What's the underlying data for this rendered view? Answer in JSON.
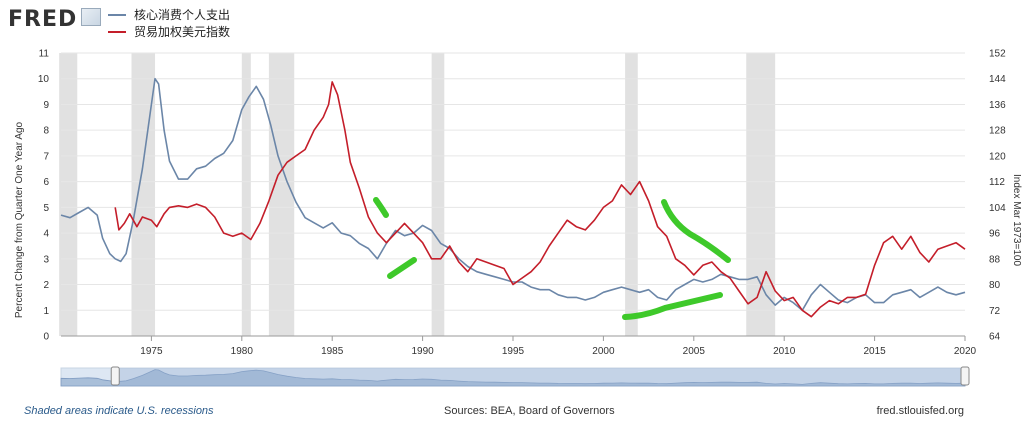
{
  "brand": {
    "name": "FRED"
  },
  "legend": [
    {
      "label": "核心消费个人支出",
      "color": "#6b86a8"
    },
    {
      "label": "贸易加权美元指数",
      "color": "#c41e2a"
    }
  ],
  "chart_data": {
    "type": "line",
    "ylabel_left": "Percent Change from Quarter One Year Ago",
    "ylabel_right": "Index Mar 1973=100",
    "x_range": [
      1970,
      2020
    ],
    "y_left_range": [
      0,
      11
    ],
    "y_right_range": [
      64,
      152
    ],
    "x_ticks": [
      1975,
      1980,
      1985,
      1990,
      1995,
      2000,
      2005,
      2010,
      2015,
      2020
    ],
    "y_left_ticks": [
      0,
      1,
      2,
      3,
      4,
      5,
      6,
      7,
      8,
      9,
      10,
      11
    ],
    "y_right_ticks": [
      64,
      72,
      80,
      88,
      96,
      104,
      112,
      120,
      128,
      136,
      144,
      152
    ],
    "recessions": [
      [
        1969.9,
        1970.9
      ],
      [
        1973.9,
        1975.2
      ],
      [
        1980.0,
        1980.5
      ],
      [
        1981.5,
        1982.9
      ],
      [
        1990.5,
        1991.2
      ],
      [
        2001.2,
        2001.9
      ],
      [
        2007.9,
        2009.5
      ]
    ],
    "series": [
      {
        "name": "核心消费个人支出",
        "axis": "left",
        "color": "#6b86a8",
        "points": [
          [
            1970.0,
            4.7
          ],
          [
            1970.5,
            4.6
          ],
          [
            1971.0,
            4.8
          ],
          [
            1971.5,
            5.0
          ],
          [
            1972.0,
            4.7
          ],
          [
            1972.3,
            3.8
          ],
          [
            1972.7,
            3.2
          ],
          [
            1973.0,
            3.0
          ],
          [
            1973.3,
            2.9
          ],
          [
            1973.6,
            3.2
          ],
          [
            1974.0,
            4.5
          ],
          [
            1974.5,
            6.5
          ],
          [
            1974.9,
            8.5
          ],
          [
            1975.2,
            10.0
          ],
          [
            1975.4,
            9.8
          ],
          [
            1975.7,
            8.0
          ],
          [
            1976.0,
            6.8
          ],
          [
            1976.5,
            6.1
          ],
          [
            1977.0,
            6.1
          ],
          [
            1977.5,
            6.5
          ],
          [
            1978.0,
            6.6
          ],
          [
            1978.5,
            6.9
          ],
          [
            1979.0,
            7.1
          ],
          [
            1979.5,
            7.6
          ],
          [
            1980.0,
            8.8
          ],
          [
            1980.4,
            9.3
          ],
          [
            1980.8,
            9.7
          ],
          [
            1981.2,
            9.2
          ],
          [
            1981.6,
            8.2
          ],
          [
            1982.0,
            7.0
          ],
          [
            1982.5,
            6.0
          ],
          [
            1983.0,
            5.2
          ],
          [
            1983.5,
            4.6
          ],
          [
            1984.0,
            4.4
          ],
          [
            1984.5,
            4.2
          ],
          [
            1985.0,
            4.4
          ],
          [
            1985.5,
            4.0
          ],
          [
            1986.0,
            3.9
          ],
          [
            1986.5,
            3.6
          ],
          [
            1987.0,
            3.4
          ],
          [
            1987.5,
            3.0
          ],
          [
            1988.0,
            3.6
          ],
          [
            1988.5,
            4.1
          ],
          [
            1989.0,
            3.9
          ],
          [
            1989.5,
            4.0
          ],
          [
            1990.0,
            4.3
          ],
          [
            1990.5,
            4.1
          ],
          [
            1991.0,
            3.6
          ],
          [
            1991.5,
            3.4
          ],
          [
            1992.0,
            3.0
          ],
          [
            1992.5,
            2.7
          ],
          [
            1993.0,
            2.5
          ],
          [
            1993.5,
            2.4
          ],
          [
            1994.0,
            2.3
          ],
          [
            1994.5,
            2.2
          ],
          [
            1995.0,
            2.1
          ],
          [
            1995.5,
            2.1
          ],
          [
            1996.0,
            1.9
          ],
          [
            1996.5,
            1.8
          ],
          [
            1997.0,
            1.8
          ],
          [
            1997.5,
            1.6
          ],
          [
            1998.0,
            1.5
          ],
          [
            1998.5,
            1.5
          ],
          [
            1999.0,
            1.4
          ],
          [
            1999.5,
            1.5
          ],
          [
            2000.0,
            1.7
          ],
          [
            2000.5,
            1.8
          ],
          [
            2001.0,
            1.9
          ],
          [
            2001.5,
            1.8
          ],
          [
            2002.0,
            1.7
          ],
          [
            2002.5,
            1.8
          ],
          [
            2003.0,
            1.5
          ],
          [
            2003.5,
            1.4
          ],
          [
            2004.0,
            1.8
          ],
          [
            2004.5,
            2.0
          ],
          [
            2005.0,
            2.2
          ],
          [
            2005.5,
            2.1
          ],
          [
            2006.0,
            2.2
          ],
          [
            2006.5,
            2.4
          ],
          [
            2007.0,
            2.3
          ],
          [
            2007.5,
            2.2
          ],
          [
            2008.0,
            2.2
          ],
          [
            2008.5,
            2.3
          ],
          [
            2009.0,
            1.6
          ],
          [
            2009.5,
            1.2
          ],
          [
            2010.0,
            1.5
          ],
          [
            2010.5,
            1.3
          ],
          [
            2011.0,
            1.0
          ],
          [
            2011.5,
            1.6
          ],
          [
            2012.0,
            2.0
          ],
          [
            2012.5,
            1.7
          ],
          [
            2013.0,
            1.4
          ],
          [
            2013.5,
            1.3
          ],
          [
            2014.0,
            1.5
          ],
          [
            2014.5,
            1.6
          ],
          [
            2015.0,
            1.3
          ],
          [
            2015.5,
            1.3
          ],
          [
            2016.0,
            1.6
          ],
          [
            2016.5,
            1.7
          ],
          [
            2017.0,
            1.8
          ],
          [
            2017.5,
            1.5
          ],
          [
            2018.0,
            1.7
          ],
          [
            2018.5,
            1.9
          ],
          [
            2019.0,
            1.7
          ],
          [
            2019.5,
            1.6
          ],
          [
            2020.0,
            1.7
          ]
        ]
      },
      {
        "name": "贸易加权美元指数",
        "axis": "right",
        "color": "#c41e2a",
        "points": [
          [
            1973.0,
            104.0
          ],
          [
            1973.2,
            97.0
          ],
          [
            1973.5,
            99.0
          ],
          [
            1973.8,
            102.0
          ],
          [
            1974.2,
            98.0
          ],
          [
            1974.5,
            101.0
          ],
          [
            1975.0,
            100.0
          ],
          [
            1975.3,
            98.0
          ],
          [
            1975.7,
            102.0
          ],
          [
            1976.0,
            104.0
          ],
          [
            1976.5,
            104.5
          ],
          [
            1977.0,
            104.0
          ],
          [
            1977.5,
            105.0
          ],
          [
            1978.0,
            104.0
          ],
          [
            1978.5,
            101.0
          ],
          [
            1979.0,
            96.0
          ],
          [
            1979.5,
            95.0
          ],
          [
            1980.0,
            96.0
          ],
          [
            1980.5,
            94.0
          ],
          [
            1981.0,
            99.0
          ],
          [
            1981.5,
            106.0
          ],
          [
            1982.0,
            114.0
          ],
          [
            1982.5,
            118.0
          ],
          [
            1983.0,
            120.0
          ],
          [
            1983.5,
            122.0
          ],
          [
            1984.0,
            128.0
          ],
          [
            1984.5,
            132.0
          ],
          [
            1984.8,
            136.0
          ],
          [
            1985.0,
            143.0
          ],
          [
            1985.3,
            139.0
          ],
          [
            1985.7,
            128.0
          ],
          [
            1986.0,
            118.0
          ],
          [
            1986.5,
            110.0
          ],
          [
            1987.0,
            101.0
          ],
          [
            1987.5,
            96.0
          ],
          [
            1988.0,
            93.0
          ],
          [
            1988.5,
            96.0
          ],
          [
            1989.0,
            99.0
          ],
          [
            1989.5,
            96.0
          ],
          [
            1990.0,
            93.0
          ],
          [
            1990.5,
            88.0
          ],
          [
            1991.0,
            88.0
          ],
          [
            1991.5,
            92.0
          ],
          [
            1992.0,
            87.0
          ],
          [
            1992.5,
            84.0
          ],
          [
            1993.0,
            88.0
          ],
          [
            1993.5,
            87.0
          ],
          [
            1994.0,
            86.0
          ],
          [
            1994.5,
            85.0
          ],
          [
            1995.0,
            80.0
          ],
          [
            1995.5,
            82.0
          ],
          [
            1996.0,
            84.0
          ],
          [
            1996.5,
            87.0
          ],
          [
            1997.0,
            92.0
          ],
          [
            1997.5,
            96.0
          ],
          [
            1998.0,
            100.0
          ],
          [
            1998.5,
            98.0
          ],
          [
            1999.0,
            97.0
          ],
          [
            1999.5,
            100.0
          ],
          [
            2000.0,
            104.0
          ],
          [
            2000.5,
            106.0
          ],
          [
            2001.0,
            111.0
          ],
          [
            2001.5,
            108.0
          ],
          [
            2002.0,
            112.0
          ],
          [
            2002.5,
            106.0
          ],
          [
            2003.0,
            98.0
          ],
          [
            2003.5,
            95.0
          ],
          [
            2004.0,
            88.0
          ],
          [
            2004.5,
            86.0
          ],
          [
            2005.0,
            83.0
          ],
          [
            2005.5,
            86.0
          ],
          [
            2006.0,
            87.0
          ],
          [
            2006.5,
            84.0
          ],
          [
            2007.0,
            82.0
          ],
          [
            2007.5,
            78.0
          ],
          [
            2008.0,
            74.0
          ],
          [
            2008.5,
            76.0
          ],
          [
            2009.0,
            84.0
          ],
          [
            2009.5,
            78.0
          ],
          [
            2010.0,
            75.0
          ],
          [
            2010.5,
            76.0
          ],
          [
            2011.0,
            72.0
          ],
          [
            2011.5,
            70.0
          ],
          [
            2012.0,
            73.0
          ],
          [
            2012.5,
            75.0
          ],
          [
            2013.0,
            74.0
          ],
          [
            2013.5,
            76.0
          ],
          [
            2014.0,
            76.0
          ],
          [
            2014.5,
            77.0
          ],
          [
            2015.0,
            86.0
          ],
          [
            2015.5,
            93.0
          ],
          [
            2016.0,
            95.0
          ],
          [
            2016.5,
            91.0
          ],
          [
            2017.0,
            95.0
          ],
          [
            2017.5,
            90.0
          ],
          [
            2018.0,
            87.0
          ],
          [
            2018.5,
            91.0
          ],
          [
            2019.0,
            92.0
          ],
          [
            2019.5,
            93.0
          ],
          [
            2020.0,
            91.0
          ]
        ]
      }
    ]
  },
  "annotations": {
    "highlight_color": "#3ec92a"
  },
  "footer": {
    "note": "Shaded areas indicate U.S. recessions",
    "sources": "Sources: BEA, Board of Governors",
    "link": "fred.stlouisfed.org"
  }
}
